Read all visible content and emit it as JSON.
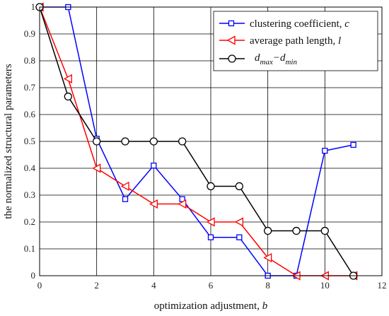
{
  "chart_data": {
    "type": "line",
    "xlabel": "optimization adjustment, ",
    "xlabel_var": "b",
    "ylabel": "the normalized structural parameters",
    "xlim": [
      0,
      12
    ],
    "ylim": [
      0,
      1
    ],
    "xticks": [
      "0",
      "2",
      "4",
      "6",
      "8",
      "10",
      "12"
    ],
    "yticks": [
      "0",
      "0.1",
      "0.2",
      "0.3",
      "0.4",
      "0.5",
      "0.6",
      "0.7",
      "0.8",
      "0.9",
      "1"
    ],
    "grid": true,
    "legend_position": "top-right",
    "series": [
      {
        "name": "clustering coefficient, ",
        "name_var": "c",
        "color": "#0000ff",
        "marker": "square",
        "x": [
          0,
          1,
          2,
          3,
          4,
          5,
          6,
          7,
          8,
          9,
          10,
          11
        ],
        "y": [
          1,
          1,
          0.51,
          0.285,
          0.41,
          0.285,
          0.143,
          0.143,
          0,
          0,
          0.465,
          0.487
        ]
      },
      {
        "name": "average path length, ",
        "name_var": "l",
        "color": "#ff0000",
        "marker": "triangle-left",
        "x": [
          0,
          1,
          2,
          3,
          4,
          5,
          6,
          7,
          8,
          9,
          10,
          11
        ],
        "y": [
          1,
          0.733,
          0.4,
          0.333,
          0.267,
          0.267,
          0.2,
          0.2,
          0.067,
          0,
          0,
          0
        ]
      },
      {
        "name": "d",
        "name_sub1": "max",
        "name_mid": "−d",
        "name_sub2": "min",
        "color": "#000000",
        "marker": "circle",
        "x": [
          0,
          1,
          2,
          3,
          4,
          5,
          6,
          7,
          8,
          9,
          10,
          11
        ],
        "y": [
          1,
          0.667,
          0.5,
          0.5,
          0.5,
          0.5,
          0.333,
          0.333,
          0.167,
          0.167,
          0.167,
          0
        ]
      }
    ]
  }
}
